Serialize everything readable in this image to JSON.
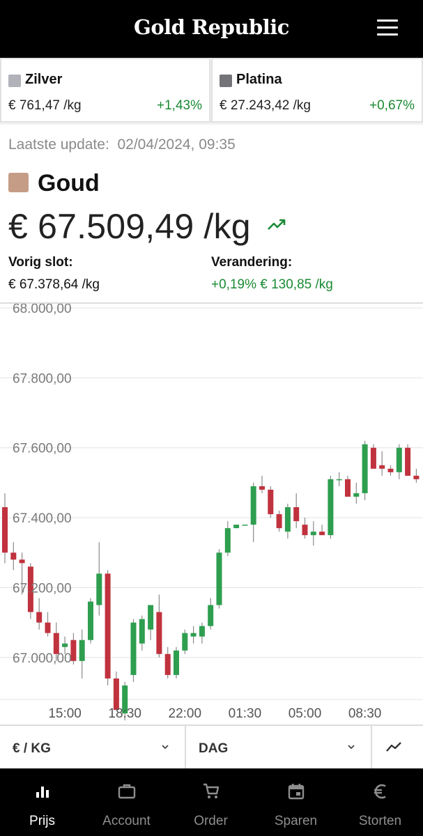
{
  "header": {
    "brand": "Gold Republic",
    "menu_icon": "hamburger-menu-icon"
  },
  "tickers": [
    {
      "name": "Zilver",
      "price": "€ 761,47 /kg",
      "change": "+1,43%",
      "swatch": "#b1b1ba"
    },
    {
      "name": "Platina",
      "price": "€ 27.243,42 /kg",
      "change": "+0,67%",
      "swatch": "#737378"
    }
  ],
  "metal": {
    "last_update": "Laatste update:  02/04/2024, 09:35",
    "name": "Goud",
    "swatch": "#c59d86",
    "price": "€ 67.509,49 /kg",
    "trend_icon": "trending-up-icon",
    "prev_close_label": "Vorig slot:",
    "prev_close": "€ 67.378,64 /kg",
    "change_label": "Verandering:",
    "change": "+0,19% € 130,85 /kg"
  },
  "chart_data": {
    "type": "candlestick",
    "y_ticks": [
      "68.000,00",
      "67.800,00",
      "67.600,00",
      "67.400,00",
      "67.200,00",
      "67.000,00"
    ],
    "y_tick_values": [
      68000,
      67800,
      67600,
      67400,
      67200,
      67000
    ],
    "ylim": [
      66880,
      68000
    ],
    "x_ticks": [
      "15:00",
      "18:30",
      "22:00",
      "01:30",
      "05:00",
      "08:30"
    ],
    "x_tick_index": [
      7,
      14,
      21,
      28,
      35,
      42
    ],
    "colors": {
      "up": "#2e9e4f",
      "down": "#c0323e",
      "wick": "#8a8a8a"
    },
    "candles": [
      [
        67430,
        67470,
        67270,
        67300
      ],
      [
        67300,
        67330,
        67250,
        67280
      ],
      [
        67280,
        67300,
        67180,
        67270
      ],
      [
        67260,
        67270,
        67110,
        67130
      ],
      [
        67130,
        67170,
        67080,
        67100
      ],
      [
        67100,
        67130,
        67060,
        67070
      ],
      [
        67070,
        67100,
        66990,
        67010
      ],
      [
        67030,
        67060,
        67010,
        67040
      ],
      [
        67050,
        67070,
        66980,
        66990
      ],
      [
        66990,
        67080,
        66940,
        67050
      ],
      [
        67050,
        67170,
        67040,
        67160
      ],
      [
        67150,
        67330,
        67120,
        67240
      ],
      [
        67240,
        67250,
        66920,
        66940
      ],
      [
        66940,
        66960,
        66850,
        66850
      ],
      [
        66840,
        66930,
        66820,
        66920
      ],
      [
        66950,
        67110,
        66930,
        67100
      ],
      [
        67040,
        67120,
        67020,
        67110
      ],
      [
        67080,
        67150,
        67050,
        67150
      ],
      [
        67130,
        67180,
        67000,
        67010
      ],
      [
        67010,
        67030,
        66940,
        66950
      ],
      [
        66950,
        67030,
        66940,
        67020
      ],
      [
        67020,
        67080,
        67010,
        67070
      ],
      [
        67060,
        67090,
        67040,
        67070
      ],
      [
        67060,
        67100,
        67040,
        67090
      ],
      [
        67090,
        67170,
        67080,
        67150
      ],
      [
        67150,
        67310,
        67140,
        67300
      ],
      [
        67300,
        67390,
        67290,
        67370
      ],
      [
        67370,
        67380,
        67370,
        67380
      ],
      [
        67380,
        67380,
        67380,
        67380
      ],
      [
        67380,
        67500,
        67330,
        67490
      ],
      [
        67490,
        67520,
        67470,
        67480
      ],
      [
        67480,
        67490,
        67400,
        67410
      ],
      [
        67410,
        67420,
        67360,
        67370
      ],
      [
        67360,
        67440,
        67340,
        67430
      ],
      [
        67430,
        67470,
        67370,
        67390
      ],
      [
        67380,
        67400,
        67340,
        67350
      ],
      [
        67350,
        67390,
        67320,
        67360
      ],
      [
        67360,
        67380,
        67350,
        67350
      ],
      [
        67350,
        67520,
        67340,
        67510
      ],
      [
        67510,
        67530,
        67490,
        67510
      ],
      [
        67510,
        67520,
        67460,
        67460
      ],
      [
        67460,
        67500,
        67440,
        67470
      ],
      [
        67470,
        67620,
        67450,
        67610
      ],
      [
        67600,
        67610,
        67540,
        67540
      ],
      [
        67550,
        67590,
        67520,
        67540
      ],
      [
        67540,
        67550,
        67520,
        67530
      ],
      [
        67530,
        67610,
        67510,
        67600
      ],
      [
        67600,
        67610,
        67520,
        67520
      ],
      [
        67520,
        67540,
        67500,
        67510
      ]
    ]
  },
  "controls": {
    "unit": "€ / KG",
    "range": "DAG",
    "caret_icon": "chevron-down-icon",
    "chart_type_icon": "line-chart-icon"
  },
  "nav": [
    {
      "label": "Prijs",
      "icon": "bar-chart-icon",
      "active": true
    },
    {
      "label": "Account",
      "icon": "briefcase-icon",
      "active": false
    },
    {
      "label": "Order",
      "icon": "shopping-cart-icon",
      "active": false
    },
    {
      "label": "Sparen",
      "icon": "calendar-icon",
      "active": false
    },
    {
      "label": "Storten",
      "icon": "euro-icon",
      "active": false
    }
  ]
}
